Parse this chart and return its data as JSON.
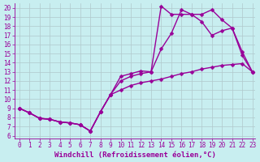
{
  "xlabel": "Windchill (Refroidissement éolien,°C)",
  "bg_color": "#c8eef0",
  "line_color": "#990099",
  "xlim": [
    -0.5,
    23.3
  ],
  "ylim": [
    5.7,
    20.5
  ],
  "xticks": [
    0,
    1,
    2,
    3,
    4,
    5,
    6,
    7,
    8,
    9,
    10,
    11,
    12,
    13,
    14,
    15,
    16,
    17,
    18,
    19,
    20,
    21,
    22,
    23
  ],
  "yticks": [
    6,
    7,
    8,
    9,
    10,
    11,
    12,
    13,
    14,
    15,
    16,
    17,
    18,
    19,
    20
  ],
  "curve1_x": [
    0,
    1,
    2,
    3,
    4,
    5,
    6,
    7,
    8,
    9,
    10,
    11,
    12,
    13,
    14,
    15,
    16,
    17,
    18,
    19,
    20,
    21,
    22,
    23
  ],
  "curve1_y": [
    9.0,
    8.5,
    7.9,
    7.8,
    7.5,
    7.4,
    7.2,
    6.5,
    8.6,
    10.5,
    12.5,
    12.8,
    13.1,
    13.0,
    20.2,
    19.3,
    19.3,
    19.3,
    19.3,
    19.8,
    18.7,
    17.8,
    15.2,
    13.0
  ],
  "curve2_x": [
    0,
    1,
    2,
    3,
    4,
    5,
    6,
    7,
    8,
    9,
    10,
    11,
    12,
    13,
    14,
    15,
    16,
    17,
    18,
    19,
    20,
    21,
    22,
    23
  ],
  "curve2_y": [
    9.0,
    8.5,
    7.9,
    7.8,
    7.5,
    7.4,
    7.2,
    6.5,
    8.6,
    10.5,
    12.0,
    12.5,
    12.8,
    13.0,
    15.5,
    17.2,
    19.8,
    19.3,
    18.5,
    17.0,
    17.5,
    17.8,
    14.8,
    13.0
  ],
  "curve3_x": [
    0,
    1,
    2,
    3,
    4,
    5,
    6,
    7,
    8,
    9,
    10,
    11,
    12,
    13,
    14,
    15,
    16,
    17,
    18,
    19,
    20,
    21,
    22,
    23
  ],
  "curve3_y": [
    9.0,
    8.5,
    7.9,
    7.8,
    7.5,
    7.4,
    7.2,
    6.5,
    8.6,
    10.5,
    11.0,
    11.5,
    11.8,
    12.0,
    12.2,
    12.5,
    12.8,
    13.0,
    13.3,
    13.5,
    13.7,
    13.8,
    13.9,
    13.0
  ],
  "marker": "D",
  "marker_size": 2.5,
  "linewidth": 1.0,
  "xlabel_fontsize": 6.5,
  "tick_fontsize": 5.5,
  "grid_color": "#b0c8cc",
  "grid_linewidth": 0.5
}
